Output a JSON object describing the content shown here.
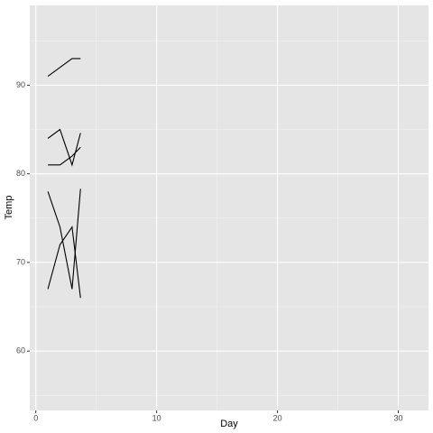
{
  "chart_data": {
    "type": "line",
    "x_label": "Day",
    "y_label": "Temp",
    "color": "#000000",
    "lines": [
      {
        "x": [
          1,
          3,
          3.7
        ],
        "y": [
          91,
          93,
          93
        ]
      },
      {
        "x": [
          1,
          2,
          3,
          3.7
        ],
        "y": [
          84,
          85,
          81,
          84.6
        ]
      },
      {
        "x": [
          1,
          2,
          3,
          3.7
        ],
        "y": [
          81,
          81,
          82,
          83
        ]
      },
      {
        "x": [
          1,
          2,
          3,
          3.7
        ],
        "y": [
          78,
          74,
          67,
          78.3
        ]
      },
      {
        "x": [
          1,
          2,
          3,
          3.7
        ],
        "y": [
          67,
          72,
          74,
          66
        ]
      }
    ],
    "xlim": [
      -0.5,
      32.5
    ],
    "xticks": [
      0,
      10,
      20,
      30
    ],
    "minor_xticks": [
      5,
      15,
      25
    ],
    "ylim": [
      53.3,
      99
    ],
    "yticks": [
      60,
      70,
      80,
      90
    ],
    "minor_yticks": [
      55,
      65,
      75,
      85,
      95
    ],
    "grid": true
  }
}
